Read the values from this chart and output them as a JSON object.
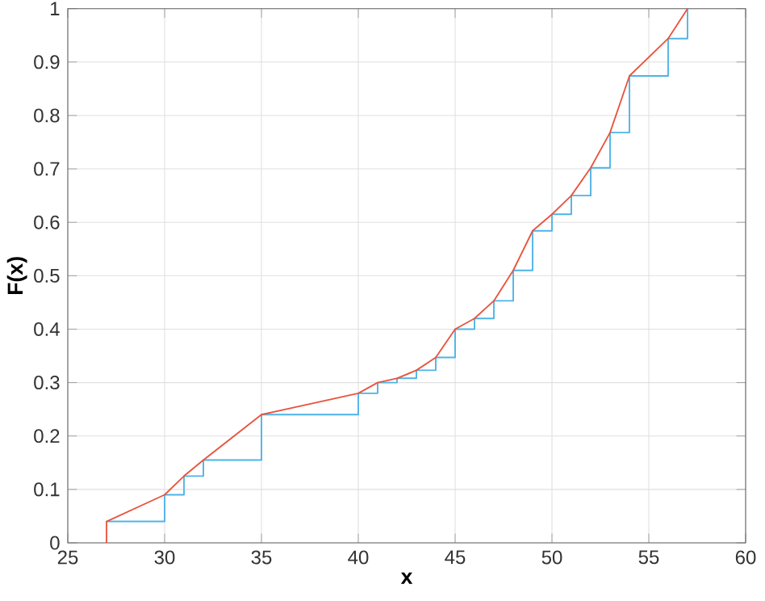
{
  "chart_data": {
    "type": "line",
    "xlabel": "x",
    "ylabel": "F(x)",
    "xlim": [
      25,
      60
    ],
    "ylim": [
      0,
      1
    ],
    "xticks": [
      25,
      30,
      35,
      40,
      45,
      50,
      55,
      60
    ],
    "yticks": [
      0,
      0.1,
      0.2,
      0.3,
      0.4,
      0.5,
      0.6,
      0.7,
      0.8,
      0.9,
      1
    ],
    "grid": true,
    "series": [
      {
        "type": "step",
        "color": "#4db3e6",
        "x": [
          27,
          30,
          31,
          32,
          35,
          40,
          41,
          42,
          43,
          44,
          45,
          46,
          47,
          48,
          49,
          50,
          51,
          52,
          53,
          54,
          56,
          57
        ],
        "values": [
          0.04,
          0.09,
          0.125,
          0.155,
          0.24,
          0.28,
          0.3,
          0.308,
          0.323,
          0.347,
          0.4,
          0.42,
          0.453,
          0.51,
          0.584,
          0.615,
          0.65,
          0.702,
          0.768,
          0.874,
          0.944,
          1
        ]
      },
      {
        "color": "#e8553e",
        "x": [
          27,
          27,
          30,
          31,
          32,
          35,
          40,
          41,
          42,
          43,
          44,
          45,
          46,
          47,
          48,
          49,
          50,
          51,
          52,
          53,
          54,
          56,
          57
        ],
        "values": [
          0,
          0.04,
          0.09,
          0.125,
          0.155,
          0.24,
          0.28,
          0.3,
          0.308,
          0.323,
          0.347,
          0.4,
          0.42,
          0.453,
          0.51,
          0.584,
          0.615,
          0.65,
          0.702,
          0.768,
          0.874,
          0.944,
          1
        ]
      }
    ]
  }
}
